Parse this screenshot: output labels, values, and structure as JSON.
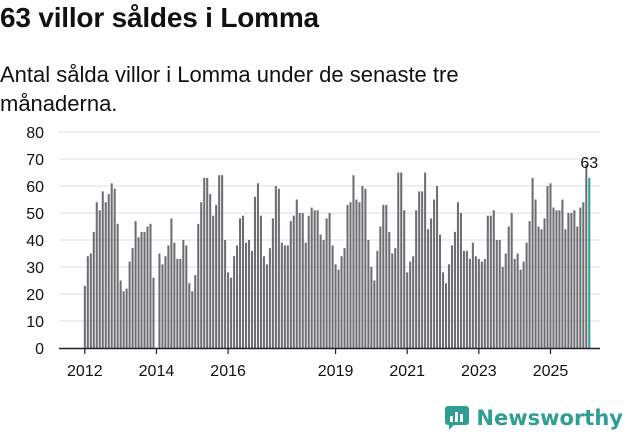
{
  "page": {
    "title": "63 villor såldes i Lomma",
    "subtitle": "Antal sålda villor i Lomma under de senaste tre månaderna.",
    "brand": "Newsworthy",
    "colors": {
      "bar": "#6e6d72",
      "highlight": "#2e9e95",
      "grid": "#dddddd",
      "text": "#111111"
    }
  },
  "chart_data": {
    "type": "bar",
    "title": "63 villor såldes i Lomma",
    "xlabel": "",
    "ylabel": "",
    "ylim": [
      0,
      80
    ],
    "yticks": [
      0,
      10,
      20,
      30,
      40,
      50,
      60,
      70,
      80
    ],
    "xtick_labels": [
      {
        "label": "2012",
        "index": 0
      },
      {
        "label": "2014",
        "index": 24
      },
      {
        "label": "2016",
        "index": 48
      },
      {
        "label": "2019",
        "index": 84
      },
      {
        "label": "2021",
        "index": 108
      },
      {
        "label": "2023",
        "index": 132
      },
      {
        "label": "2025",
        "index": 156
      }
    ],
    "start": "2012-01",
    "last_label": "63",
    "values": [
      23,
      34,
      35,
      43,
      54,
      51,
      58,
      54,
      57,
      61,
      59,
      46,
      25,
      21,
      22,
      32,
      37,
      47,
      41,
      43,
      43,
      45,
      46,
      26,
      0,
      35,
      31,
      34,
      38,
      48,
      39,
      33,
      33,
      40,
      38,
      24,
      21,
      27,
      46,
      54,
      63,
      63,
      57,
      49,
      53,
      64,
      64,
      40,
      28,
      26,
      34,
      38,
      48,
      49,
      39,
      40,
      36,
      56,
      61,
      49,
      34,
      31,
      37,
      48,
      60,
      59,
      39,
      38,
      38,
      47,
      49,
      55,
      50,
      50,
      39,
      49,
      52,
      51,
      51,
      42,
      40,
      48,
      50,
      38,
      31,
      29,
      34,
      37,
      53,
      54,
      64,
      55,
      54,
      60,
      59,
      40,
      30,
      25,
      36,
      45,
      53,
      53,
      43,
      35,
      37,
      65,
      65,
      51,
      28,
      32,
      34,
      51,
      58,
      58,
      65,
      44,
      48,
      55,
      60,
      42,
      28,
      24,
      31,
      38,
      43,
      54,
      50,
      36,
      36,
      33,
      39,
      34,
      33,
      32,
      33,
      49,
      49,
      51,
      40,
      40,
      30,
      35,
      45,
      50,
      33,
      35,
      29,
      32,
      39,
      47,
      63,
      55,
      45,
      44,
      48,
      60,
      61,
      52,
      51,
      51,
      55,
      44,
      50,
      50,
      51,
      45,
      52,
      54,
      68,
      63
    ]
  }
}
